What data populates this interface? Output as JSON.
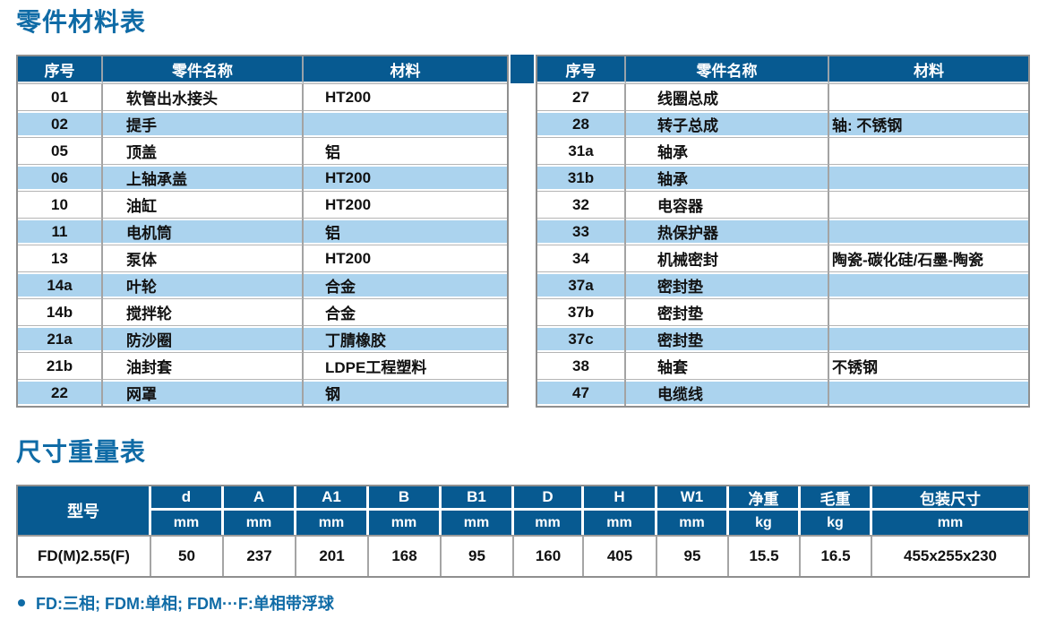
{
  "titles": {
    "parts": "零件材料表",
    "dims": "尺寸重量表"
  },
  "parts_table": {
    "headers": {
      "no": "序号",
      "name": "零件名称",
      "material": "材料"
    },
    "left_rows": [
      {
        "no": "01",
        "name": "软管出水接头",
        "material": "HT200"
      },
      {
        "no": "02",
        "name": "提手",
        "material": ""
      },
      {
        "no": "05",
        "name": "顶盖",
        "material": "铝"
      },
      {
        "no": "06",
        "name": "上轴承盖",
        "material": "HT200"
      },
      {
        "no": "10",
        "name": "油缸",
        "material": "HT200"
      },
      {
        "no": "11",
        "name": "电机筒",
        "material": "铝"
      },
      {
        "no": "13",
        "name": "泵体",
        "material": "HT200"
      },
      {
        "no": "14a",
        "name": "叶轮",
        "material": "合金"
      },
      {
        "no": "14b",
        "name": "搅拌轮",
        "material": "合金"
      },
      {
        "no": "21a",
        "name": "防沙圈",
        "material": "丁腈橡胶"
      },
      {
        "no": "21b",
        "name": "油封套",
        "material": "LDPE工程塑料"
      },
      {
        "no": "22",
        "name": "网罩",
        "material": "钢"
      }
    ],
    "right_rows": [
      {
        "no": "27",
        "name": "线圈总成",
        "material": ""
      },
      {
        "no": "28",
        "name": "转子总成",
        "material": "轴: 不锈钢"
      },
      {
        "no": "31a",
        "name": "轴承",
        "material": ""
      },
      {
        "no": "31b",
        "name": "轴承",
        "material": ""
      },
      {
        "no": "32",
        "name": "电容器",
        "material": ""
      },
      {
        "no": "33",
        "name": "热保护器",
        "material": ""
      },
      {
        "no": "34",
        "name": "机械密封",
        "material": "陶瓷-碳化硅/石墨-陶瓷"
      },
      {
        "no": "37a",
        "name": "密封垫",
        "material": ""
      },
      {
        "no": "37b",
        "name": "密封垫",
        "material": ""
      },
      {
        "no": "37c",
        "name": "密封垫",
        "material": ""
      },
      {
        "no": "38",
        "name": "轴套",
        "material": "不锈钢"
      },
      {
        "no": "47",
        "name": "电缆线",
        "material": ""
      }
    ]
  },
  "dims_table": {
    "model_header": "型号",
    "columns": [
      {
        "label": "d",
        "unit": "mm"
      },
      {
        "label": "A",
        "unit": "mm"
      },
      {
        "label": "A1",
        "unit": "mm"
      },
      {
        "label": "B",
        "unit": "mm"
      },
      {
        "label": "B1",
        "unit": "mm"
      },
      {
        "label": "D",
        "unit": "mm"
      },
      {
        "label": "H",
        "unit": "mm"
      },
      {
        "label": "W1",
        "unit": "mm"
      },
      {
        "label": "净重",
        "unit": "kg"
      },
      {
        "label": "毛重",
        "unit": "kg"
      },
      {
        "label": "包装尺寸",
        "unit": "mm"
      }
    ],
    "rows": [
      {
        "model": "FD(M)2.55(F)",
        "values": [
          "50",
          "237",
          "201",
          "168",
          "95",
          "160",
          "405",
          "95",
          "15.5",
          "16.5",
          "455x255x230"
        ]
      }
    ]
  },
  "note": "FD:三相; FDM:单相; FDM···F:单相带浮球",
  "colors": {
    "header_blue": "#075a91",
    "stripe_blue": "#abd3ee",
    "title_blue": "#0f6ba6",
    "border_gray": "#8f8f8f"
  }
}
